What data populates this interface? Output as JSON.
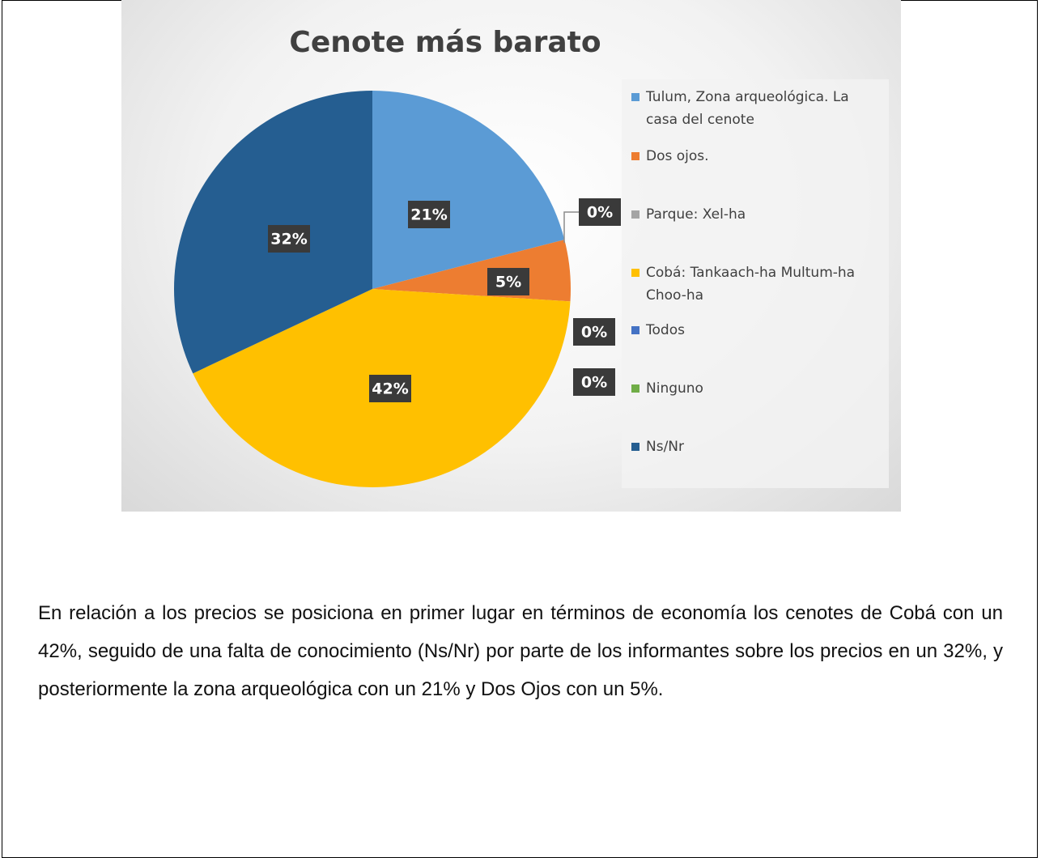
{
  "chart_data": {
    "type": "pie",
    "title": "Cenote más barato",
    "categories": [
      "Tulum, Zona arqueológica. La casa del cenote",
      "Dos ojos.",
      "Parque: Xel-ha",
      "Cobá: Tankaach-ha Multum-ha Choo-ha",
      "Todos",
      "Ninguno",
      "Ns/Nr"
    ],
    "values": [
      21,
      5,
      0,
      42,
      0,
      0,
      32
    ],
    "value_labels": [
      "21%",
      "5%",
      "0%",
      "42%",
      "0%",
      "0%",
      "32%"
    ],
    "colors": [
      "#5b9bd5",
      "#ed7d31",
      "#a5a5a5",
      "#ffc000",
      "#4472c4",
      "#70ad47",
      "#255e91"
    ],
    "legend": "right"
  },
  "paragraph": "En relación a los precios se posiciona en primer lugar en términos de economía los cenotes de Cobá con un 42%, seguido de una falta de conocimiento (Ns/Nr) por parte de los informantes sobre los precios en un 32%, y posteriormente la zona arqueológica con un 21% y Dos Ojos con un 5%."
}
